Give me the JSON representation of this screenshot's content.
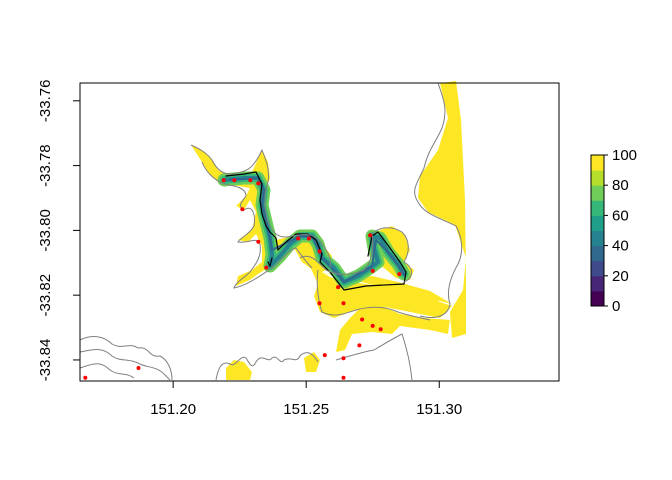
{
  "map": {
    "x_axis": {
      "ticks": [
        "151.20",
        "151.25",
        "151.30"
      ],
      "values": [
        151.2,
        151.25,
        151.3
      ],
      "range": [
        151.165,
        151.345
      ]
    },
    "y_axis": {
      "ticks": [
        "-33.76",
        "-33.78",
        "-33.80",
        "-33.82",
        "-33.84"
      ],
      "values": [
        -33.76,
        -33.78,
        -33.8,
        -33.82,
        -33.84
      ],
      "range": [
        -33.8465,
        -33.7545
      ]
    },
    "legend": {
      "labels": [
        "100",
        "80",
        "60",
        "40",
        "20",
        "0"
      ],
      "range": [
        0,
        100
      ],
      "colors": [
        "#440154",
        "#482677",
        "#3e4a89",
        "#31688e",
        "#26828e",
        "#1f9e89",
        "#35b779",
        "#6ece58",
        "#b5de2b",
        "#fde725"
      ]
    },
    "fill_color": "#fde725",
    "coastline_color": "#808080",
    "point_color": "#ff0000",
    "points": [
      [
        151.219,
        -33.7845
      ],
      [
        151.223,
        -33.7845
      ],
      [
        151.229,
        -33.7845
      ],
      [
        151.232,
        -33.7855
      ],
      [
        151.226,
        -33.7935
      ],
      [
        151.232,
        -33.8035
      ],
      [
        151.235,
        -33.8115
      ],
      [
        151.247,
        -33.8025
      ],
      [
        151.251,
        -33.8025
      ],
      [
        151.255,
        -33.8065
      ],
      [
        151.262,
        -33.8175
      ],
      [
        151.274,
        -33.8015
      ],
      [
        151.275,
        -33.8125
      ],
      [
        151.285,
        -33.8135
      ],
      [
        151.255,
        -33.8225
      ],
      [
        151.264,
        -33.8225
      ],
      [
        151.271,
        -33.8275
      ],
      [
        151.275,
        -33.8295
      ],
      [
        151.278,
        -33.8305
      ],
      [
        151.27,
        -33.8355
      ],
      [
        151.257,
        -33.8385
      ],
      [
        151.264,
        -33.8395
      ],
      [
        151.264,
        -33.8455
      ],
      [
        151.187,
        -33.8425
      ],
      [
        151.167,
        -33.8455
      ]
    ]
  }
}
